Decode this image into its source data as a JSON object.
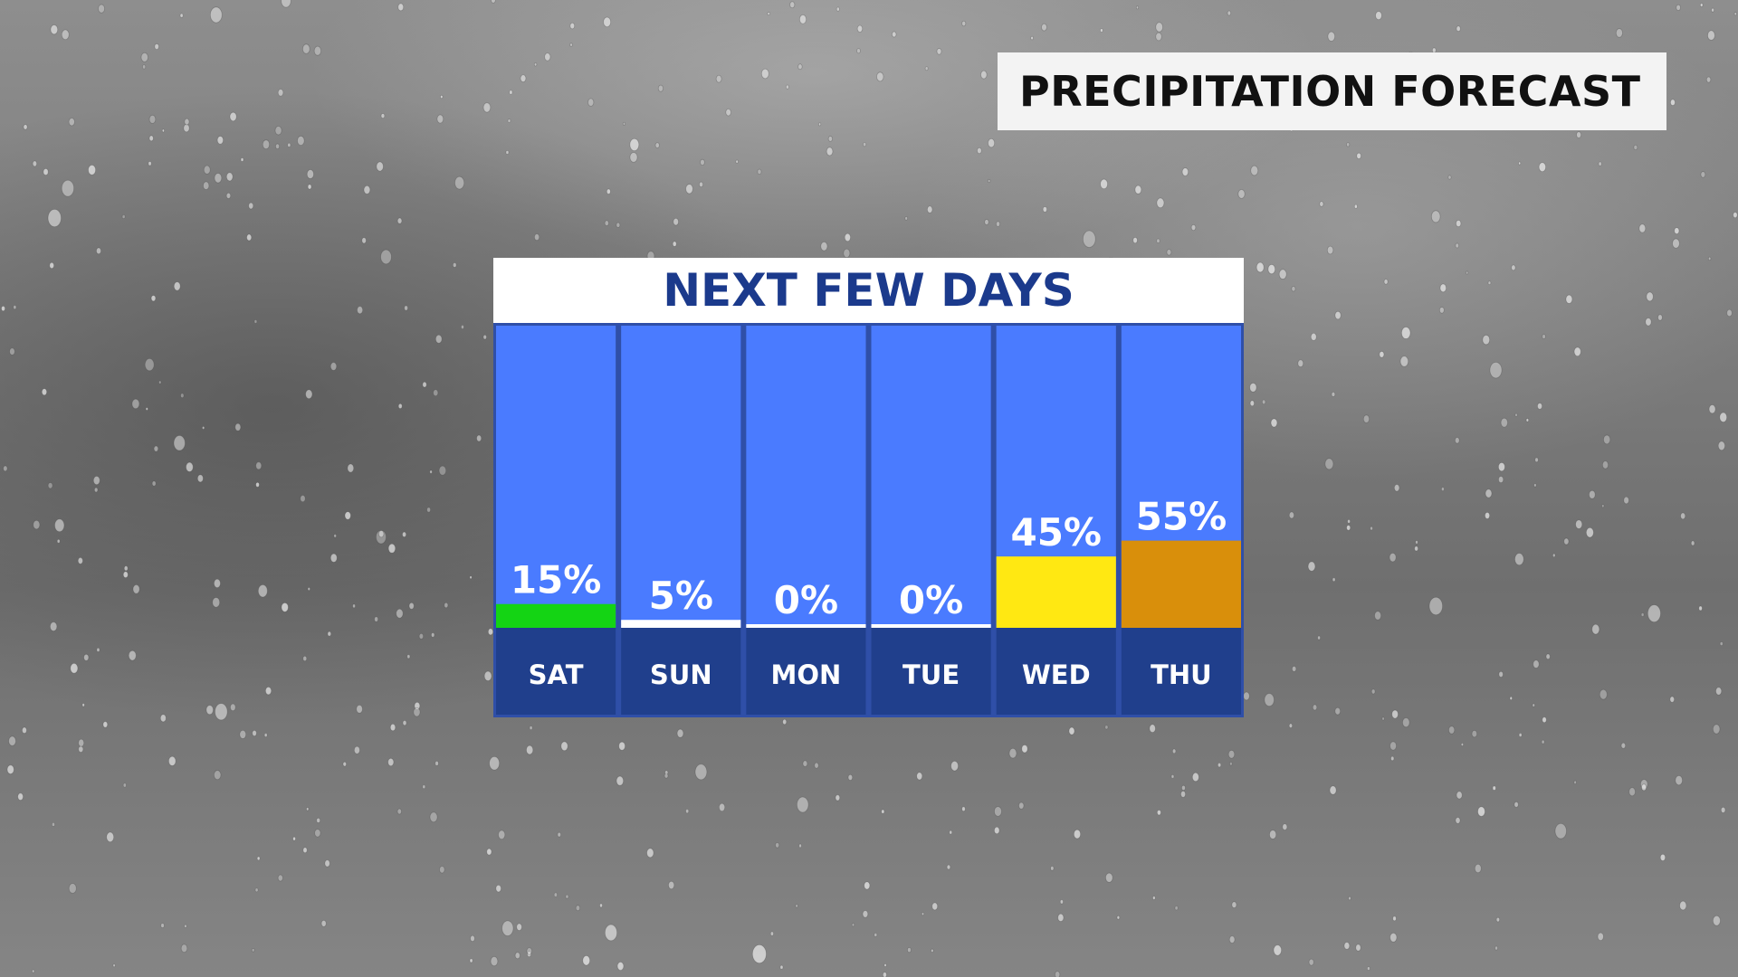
{
  "header": {
    "title": "PRECIPITATION FORECAST"
  },
  "chart_data": {
    "type": "bar",
    "title": "NEXT FEW DAYS",
    "categories": [
      "SAT",
      "SUN",
      "MON",
      "TUE",
      "WED",
      "THU"
    ],
    "values": [
      15,
      5,
      0,
      0,
      45,
      55
    ],
    "value_labels": [
      "15%",
      "5%",
      "0%",
      "0%",
      "45%",
      "55%"
    ],
    "bar_colors": [
      "#14d414",
      "#ffffff",
      "#ffffff",
      "#ffffff",
      "#ffe812",
      "#d98f0b"
    ],
    "ylim": [
      0,
      100
    ],
    "xlabel": "",
    "ylabel": "",
    "grid": false,
    "legend": "none"
  },
  "colors": {
    "column_background": "#4a7bff",
    "day_band": "#203f8c",
    "panel_border": "#2f4fa8",
    "header_text": "#1b3a8c",
    "label_text": "#ffffff"
  }
}
